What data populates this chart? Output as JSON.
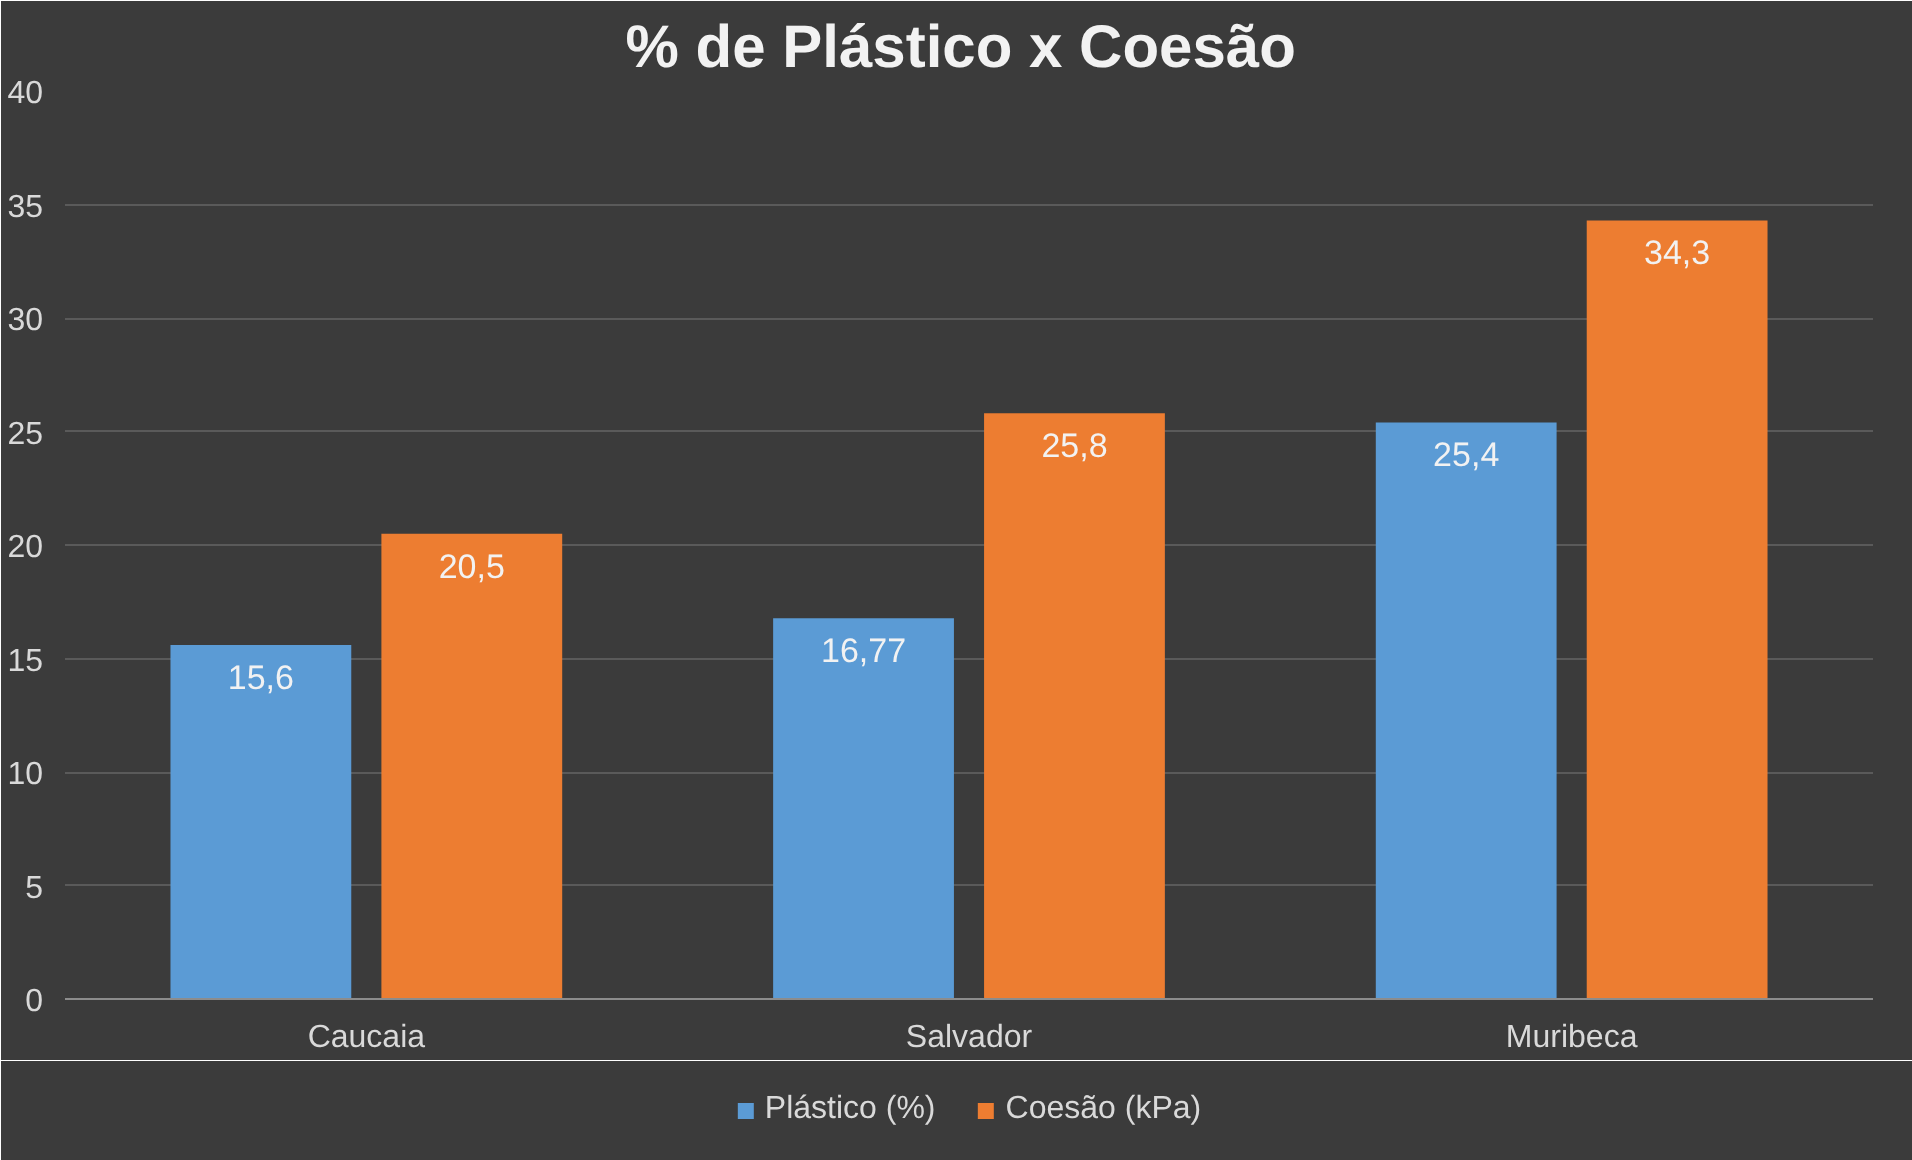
{
  "chart_data": {
    "type": "bar",
    "title": "% de Plástico  x Coesão",
    "categories": [
      "Caucaia",
      "Salvador",
      "Muribeca"
    ],
    "series": [
      {
        "name": "Plástico (%)",
        "color": "#5b9bd5",
        "values": [
          15.6,
          16.77,
          25.4
        ]
      },
      {
        "name": "Coesão (kPa)",
        "color": "#ed7d31",
        "values": [
          20.5,
          25.8,
          34.3
        ]
      }
    ],
    "ylim": [
      0,
      40
    ],
    "yticks": [
      0,
      5,
      10,
      15,
      20,
      25,
      30,
      35,
      40
    ],
    "grid": "y",
    "legend": "bottom",
    "value_labels": [
      [
        "15,6",
        "16,77",
        "25,4"
      ],
      [
        "20,5",
        "25,8",
        "34,3"
      ]
    ]
  }
}
